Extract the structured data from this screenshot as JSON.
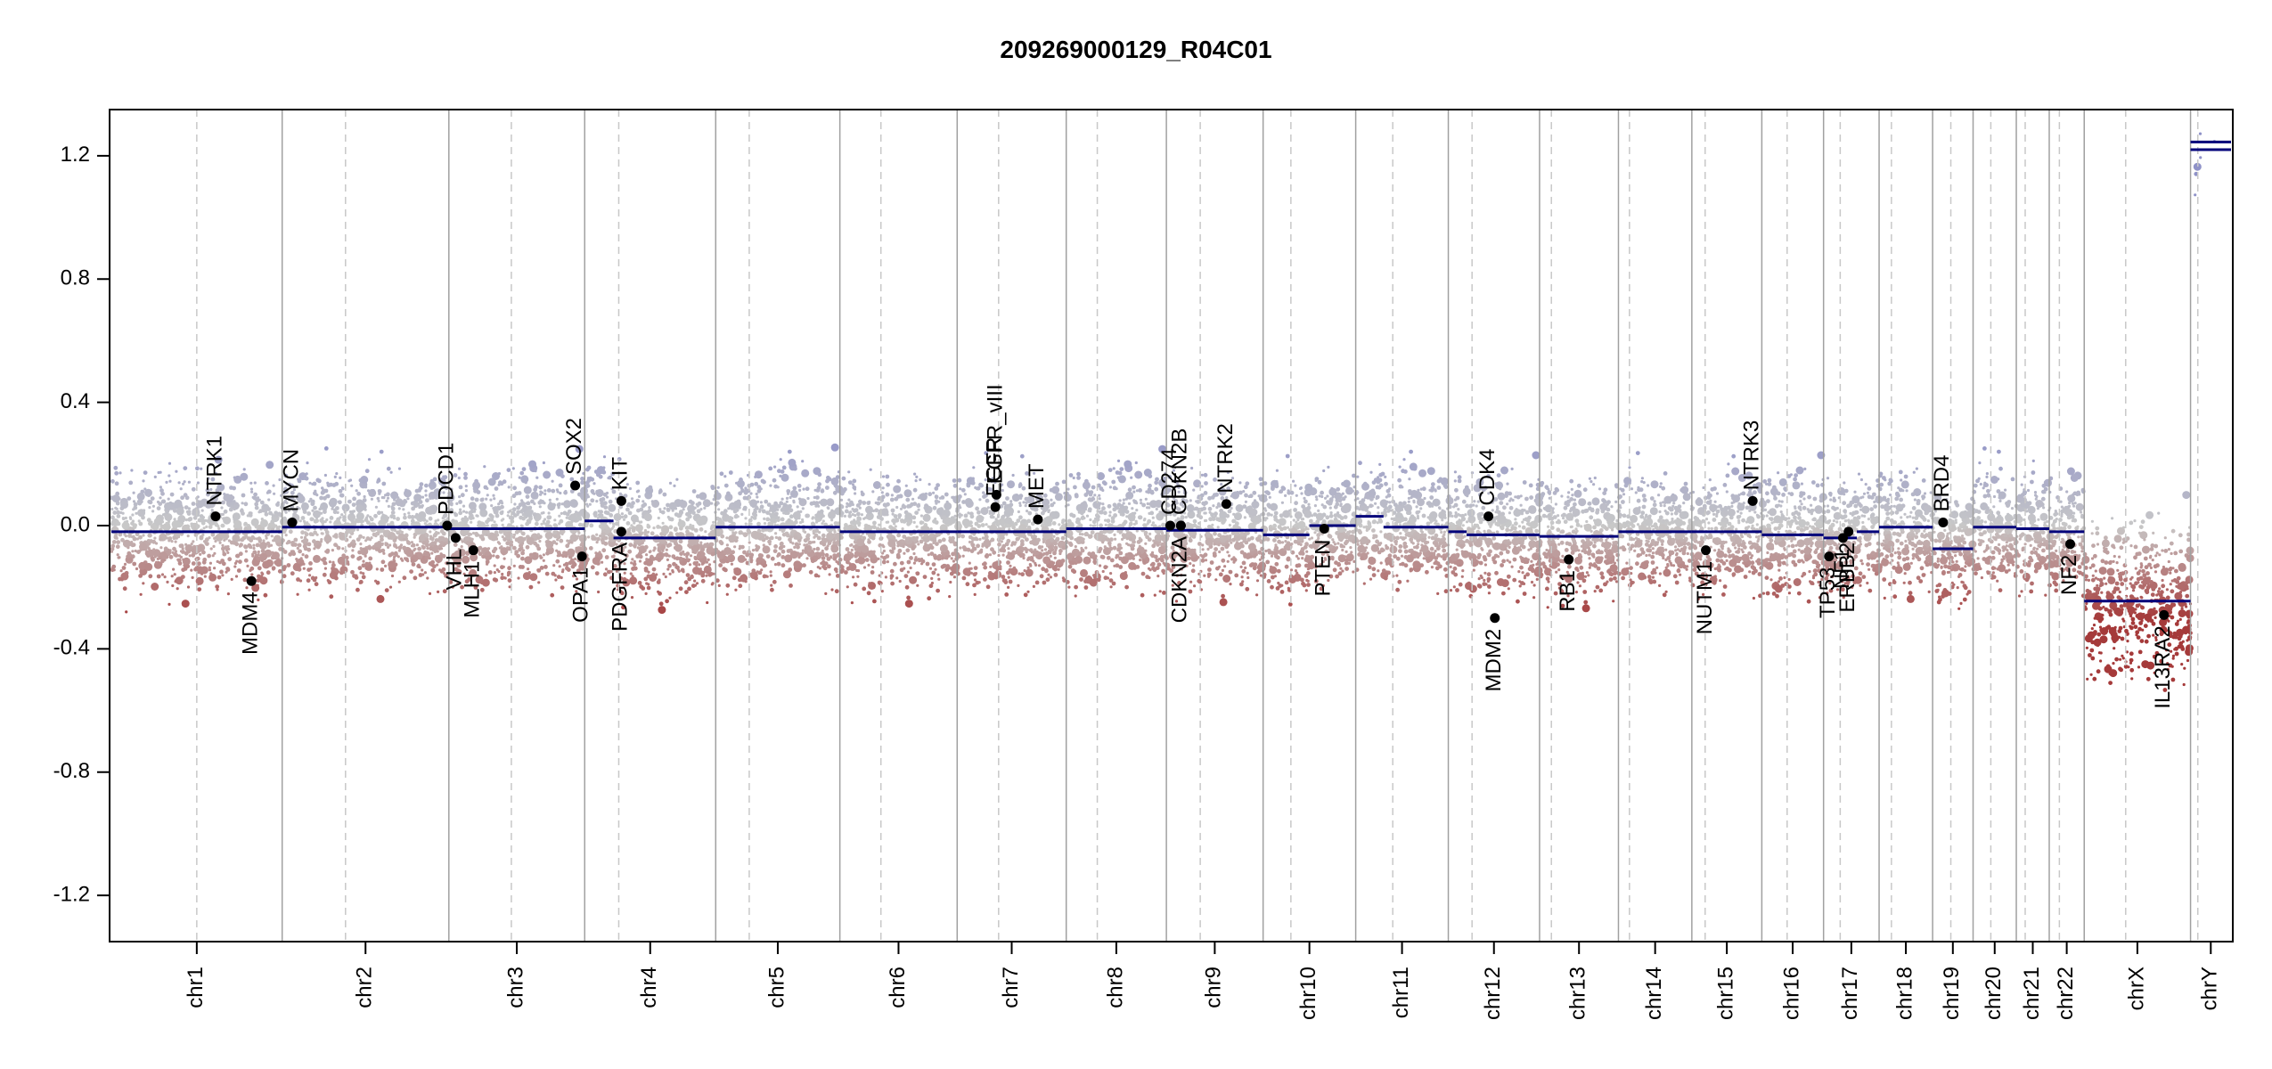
{
  "chart_data": {
    "type": "scatter",
    "title": "209269000129_R04C01",
    "xlabel": "",
    "ylabel": "",
    "ylim": [
      -1.35,
      1.35
    ],
    "y_ticks": [
      1.2,
      0.8,
      0.4,
      0.0,
      -0.4,
      -0.8,
      -1.2
    ],
    "y_tick_labels": [
      "1.2",
      "0.8",
      "0.4",
      "0.0",
      "-0.4",
      "-0.8",
      "-1.2"
    ],
    "colors": {
      "gain": "#8f92c8",
      "loss": "#a53a3a",
      "neutral": "#c8c8c8",
      "segment": "#00007a",
      "gene_point": "#000000",
      "chrom_divider": "#a0a0a0",
      "centromere": "#c8c8c8"
    },
    "chromosomes": [
      {
        "name": "chr1",
        "len": 249,
        "cen": 0.5,
        "segments": [
          [
            0.0,
            0.1,
            -0.02
          ],
          [
            0.1,
            1.0,
            -0.02
          ]
        ]
      },
      {
        "name": "chr2",
        "len": 243,
        "cen": 0.38,
        "segments": [
          [
            0.0,
            1.0,
            -0.005
          ]
        ]
      },
      {
        "name": "chr3",
        "len": 198,
        "cen": 0.46,
        "segments": [
          [
            0.0,
            1.0,
            -0.01
          ]
        ]
      },
      {
        "name": "chr4",
        "len": 191,
        "cen": 0.26,
        "segments": [
          [
            0.0,
            0.22,
            0.015
          ],
          [
            0.22,
            1.0,
            -0.04
          ]
        ]
      },
      {
        "name": "chr5",
        "len": 181,
        "cen": 0.27,
        "segments": [
          [
            0.0,
            1.0,
            -0.005
          ]
        ]
      },
      {
        "name": "chr6",
        "len": 171,
        "cen": 0.35,
        "segments": [
          [
            0.0,
            1.0,
            -0.02
          ]
        ]
      },
      {
        "name": "chr7",
        "len": 159,
        "cen": 0.38,
        "segments": [
          [
            0.0,
            1.0,
            -0.02
          ]
        ]
      },
      {
        "name": "chr8",
        "len": 146,
        "cen": 0.31,
        "segments": [
          [
            0.0,
            1.0,
            -0.01
          ]
        ]
      },
      {
        "name": "chr9",
        "len": 141,
        "cen": 0.35,
        "segments": [
          [
            0.0,
            1.0,
            -0.015
          ]
        ]
      },
      {
        "name": "chr10",
        "len": 135,
        "cen": 0.3,
        "segments": [
          [
            0.0,
            0.5,
            -0.03
          ],
          [
            0.5,
            1.0,
            0.0
          ]
        ]
      },
      {
        "name": "chr11",
        "len": 135,
        "cen": 0.4,
        "segments": [
          [
            0.0,
            0.3,
            0.03
          ],
          [
            0.3,
            1.0,
            -0.005
          ]
        ]
      },
      {
        "name": "chr12",
        "len": 133,
        "cen": 0.26,
        "segments": [
          [
            0.0,
            0.2,
            -0.02
          ],
          [
            0.2,
            1.0,
            -0.03
          ]
        ]
      },
      {
        "name": "chr13",
        "len": 115,
        "cen": 0.15,
        "segments": [
          [
            0.0,
            1.0,
            -0.035
          ]
        ]
      },
      {
        "name": "chr14",
        "len": 107,
        "cen": 0.15,
        "segments": [
          [
            0.0,
            1.0,
            -0.02
          ]
        ]
      },
      {
        "name": "chr15",
        "len": 102,
        "cen": 0.19,
        "segments": [
          [
            0.0,
            1.0,
            -0.02
          ]
        ]
      },
      {
        "name": "chr16",
        "len": 90,
        "cen": 0.41,
        "segments": [
          [
            0.0,
            1.0,
            -0.03
          ]
        ]
      },
      {
        "name": "chr17",
        "len": 81,
        "cen": 0.3,
        "segments": [
          [
            0.0,
            0.6,
            -0.04
          ],
          [
            0.6,
            1.0,
            -0.02
          ]
        ]
      },
      {
        "name": "chr18",
        "len": 78,
        "cen": 0.23,
        "segments": [
          [
            0.0,
            1.0,
            -0.005
          ]
        ]
      },
      {
        "name": "chr19",
        "len": 59,
        "cen": 0.45,
        "segments": [
          [
            0.0,
            1.0,
            -0.075
          ]
        ]
      },
      {
        "name": "chr20",
        "len": 63,
        "cen": 0.41,
        "segments": [
          [
            0.0,
            1.0,
            -0.005
          ]
        ]
      },
      {
        "name": "chr21",
        "len": 48,
        "cen": 0.27,
        "segments": [
          [
            0.0,
            1.0,
            -0.01
          ]
        ]
      },
      {
        "name": "chr22",
        "len": 51,
        "cen": 0.29,
        "segments": [
          [
            0.0,
            1.0,
            -0.02
          ]
        ]
      },
      {
        "name": "chrX",
        "len": 155,
        "cen": 0.39,
        "segments": [
          [
            0.0,
            1.0,
            -0.245
          ]
        ]
      },
      {
        "name": "chrY",
        "len": 59,
        "cen": 0.18,
        "segments": [
          [
            0.0,
            1.0,
            1.22
          ],
          [
            0.0,
            1.0,
            1.245
          ]
        ]
      }
    ],
    "genes": [
      {
        "name": "NTRK1",
        "chr": "chr1",
        "pos": 0.61,
        "y": 0.03,
        "label_side": "above"
      },
      {
        "name": "MDM4",
        "chr": "chr1",
        "pos": 0.82,
        "y": -0.18,
        "label_side": "below"
      },
      {
        "name": "MYCN",
        "chr": "chr2",
        "pos": 0.06,
        "y": 0.01,
        "label_side": "above"
      },
      {
        "name": "PDCD1",
        "chr": "chr2",
        "pos": 0.99,
        "y": 0.0,
        "label_side": "above"
      },
      {
        "name": "VHL",
        "chr": "chr3",
        "pos": 0.05,
        "y": -0.04,
        "label_side": "below"
      },
      {
        "name": "MLH1",
        "chr": "chr3",
        "pos": 0.18,
        "y": -0.08,
        "label_side": "below"
      },
      {
        "name": "SOX2",
        "chr": "chr3",
        "pos": 0.93,
        "y": 0.13,
        "label_side": "above"
      },
      {
        "name": "OPA1",
        "chr": "chr3",
        "pos": 0.98,
        "y": -0.1,
        "label_side": "below"
      },
      {
        "name": "KIT",
        "chr": "chr4",
        "pos": 0.28,
        "y": 0.08,
        "label_side": "above"
      },
      {
        "name": "PDGFRA",
        "chr": "chr4",
        "pos": 0.28,
        "y": -0.02,
        "label_side": "below"
      },
      {
        "name": "EGFR",
        "chr": "chr7",
        "pos": 0.35,
        "y": 0.06,
        "label_side": "above"
      },
      {
        "name": "EGFR_vIII",
        "chr": "chr7",
        "pos": 0.36,
        "y": 0.1,
        "label_side": "above"
      },
      {
        "name": "MET",
        "chr": "chr7",
        "pos": 0.74,
        "y": 0.02,
        "label_side": "above"
      },
      {
        "name": "CD274",
        "chr": "chr9",
        "pos": 0.04,
        "y": 0.0,
        "label_side": "above"
      },
      {
        "name": "CDKN2A",
        "chr": "chr9",
        "pos": 0.15,
        "y": 0.0,
        "label_side": "below"
      },
      {
        "name": "CDKN2B",
        "chr": "chr9",
        "pos": 0.15,
        "y": 0.0,
        "label_side": "above"
      },
      {
        "name": "NTRK2",
        "chr": "chr9",
        "pos": 0.62,
        "y": 0.07,
        "label_side": "above"
      },
      {
        "name": "PTEN",
        "chr": "chr10",
        "pos": 0.66,
        "y": -0.01,
        "label_side": "below"
      },
      {
        "name": "CDK4",
        "chr": "chr12",
        "pos": 0.44,
        "y": 0.03,
        "label_side": "above"
      },
      {
        "name": "MDM2",
        "chr": "chr12",
        "pos": 0.51,
        "y": -0.3,
        "label_side": "below"
      },
      {
        "name": "RB1",
        "chr": "chr13",
        "pos": 0.37,
        "y": -0.11,
        "label_side": "below"
      },
      {
        "name": "NUTM1",
        "chr": "chr15",
        "pos": 0.2,
        "y": -0.08,
        "label_side": "below"
      },
      {
        "name": "NTRK3",
        "chr": "chr15",
        "pos": 0.87,
        "y": 0.08,
        "label_side": "above"
      },
      {
        "name": "TP53",
        "chr": "chr17",
        "pos": 0.1,
        "y": -0.1,
        "label_side": "below"
      },
      {
        "name": "ERBB2",
        "chr": "chr17",
        "pos": 0.45,
        "y": -0.02,
        "label_side": "below"
      },
      {
        "name": "NF1",
        "chr": "chr17",
        "pos": 0.35,
        "y": -0.04,
        "label_side": "below"
      },
      {
        "name": "BRD4",
        "chr": "chr19",
        "pos": 0.26,
        "y": 0.01,
        "label_side": "above"
      },
      {
        "name": "NF2",
        "chr": "chr22",
        "pos": 0.6,
        "y": -0.06,
        "label_side": "below"
      },
      {
        "name": "IL13RA2",
        "chr": "chrX",
        "pos": 0.75,
        "y": -0.29,
        "label_side": "below"
      }
    ]
  }
}
